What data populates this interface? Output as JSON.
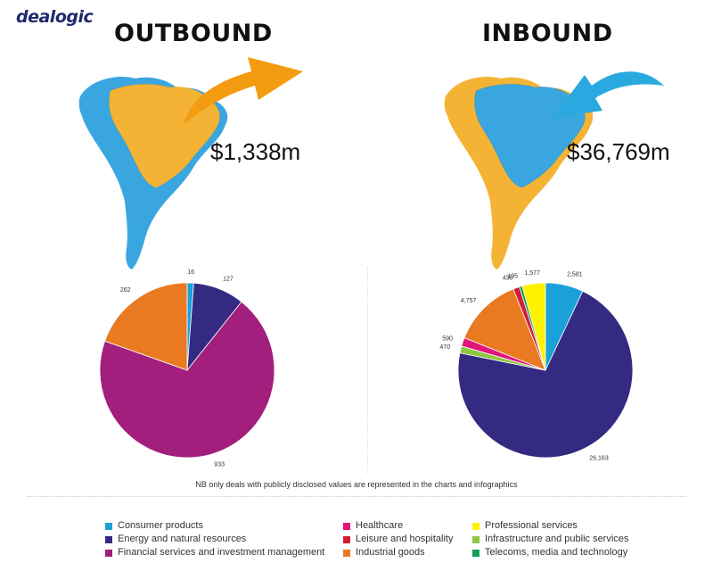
{
  "logo": "dealogic",
  "outbound": {
    "heading": "OUTBOUND",
    "amount": "$1,338m"
  },
  "inbound": {
    "heading": "INBOUND",
    "amount": "$36,769m"
  },
  "note": "NB only deals with publicly disclosed values are represented in the charts and infographics",
  "colors": {
    "map_blue": "#3aa6df",
    "map_orange": "#f5b335",
    "arrow_orange": "#f39c12",
    "arrow_blue": "#29a9e0"
  },
  "legend": [
    {
      "label": "Consumer products",
      "color": "#1ba1d9"
    },
    {
      "label": "Energy and natural resources",
      "color": "#352a82"
    },
    {
      "label": "Financial services and investment management",
      "color": "#a21f7e"
    },
    {
      "label": "Healthcare",
      "color": "#e2147a"
    },
    {
      "label": "Leisure and hospitality",
      "color": "#d21f38"
    },
    {
      "label": "Industrial goods",
      "color": "#ea7a22"
    },
    {
      "label": "Professional services",
      "color": "#fff200"
    },
    {
      "label": "Infrastructure and public services",
      "color": "#8dc63f"
    },
    {
      "label": "Telecoms, media and technology",
      "color": "#0f9d58"
    }
  ],
  "chart_data": [
    {
      "type": "pie",
      "title": "OUTBOUND",
      "categories": [
        "Consumer products",
        "Energy and natural resources",
        "Financial services and investment management",
        "Industrial goods"
      ],
      "values": [
        16,
        127,
        933,
        262
      ],
      "labels": [
        "16",
        "127",
        "933",
        "262"
      ],
      "colors": [
        "#1ba1d9",
        "#352a82",
        "#a21f7e",
        "#ea7a22"
      ]
    },
    {
      "type": "pie",
      "title": "INBOUND",
      "categories": [
        "Consumer products",
        "Energy and natural resources",
        "Infrastructure and public services",
        "Healthcare",
        "Industrial goods",
        "Leisure and hospitality",
        "Telecoms, media and technology",
        "Professional services"
      ],
      "values": [
        2581,
        26163,
        470,
        590,
        4757,
        436,
        195,
        1577
      ],
      "labels": [
        "2,581",
        "26,163",
        "470",
        "590",
        "4,757",
        "436",
        "195",
        "1,577"
      ],
      "colors": [
        "#1ba1d9",
        "#352a82",
        "#8dc63f",
        "#e2147a",
        "#ea7a22",
        "#d21f38",
        "#0f9d58",
        "#fff200"
      ]
    }
  ]
}
